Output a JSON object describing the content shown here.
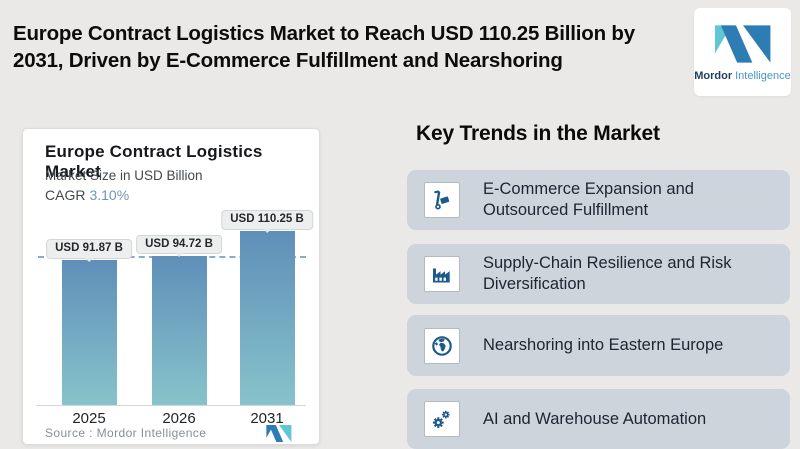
{
  "header": {
    "title_line1": "Europe Contract Logistics Market to Reach USD 110.25 Billion by",
    "title_line2": "2031, Driven by E-Commerce Fulfillment and Nearshoring"
  },
  "logo": {
    "name_bold": "Mordor",
    "name_light": "Intelligence"
  },
  "chart_card": {
    "title": "Europe Contract Logistics Market",
    "subtitle": "Market Size in USD Billion",
    "cagr_label": "CAGR",
    "cagr_value": "3.10%",
    "source_label": "Source :  Mordor Intelligence"
  },
  "chart_data": {
    "type": "bar",
    "title": "Europe Contract Logistics Market",
    "subtitle": "Market Size in USD Billion",
    "cagr": "3.10%",
    "categories": [
      "2025",
      "2026",
      "2031"
    ],
    "values": [
      91.87,
      94.72,
      110.25
    ],
    "value_labels": [
      "USD 91.87 B",
      "USD 94.72 B",
      "USD 110.25 B"
    ],
    "unit": "USD Billion",
    "ylim": [
      0,
      120
    ],
    "reference_line": 91.87,
    "grid": false,
    "legend": "none",
    "bar_gradient_top": "#5f8fb8",
    "bar_gradient_bottom": "#87c3cb",
    "source": "Source :  Mordor Intelligence"
  },
  "trends": {
    "heading": "Key Trends in the Market",
    "items": [
      {
        "icon": "hand-truck-icon",
        "label": "E-Commerce Expansion and Outsourced Fulfillment"
      },
      {
        "icon": "factory-icon",
        "label": "Supply-Chain Resilience and Risk Diversification"
      },
      {
        "icon": "globe-icon",
        "label": "Nearshoring into Eastern Europe"
      },
      {
        "icon": "gears-icon",
        "label": "AI and Warehouse Automation"
      }
    ]
  },
  "colors": {
    "page_background": "#eae9e7",
    "accent_blue": "#7095ba",
    "icon_blue": "#1d5a8c",
    "trend_card_bg": "#ced4dc",
    "logo_teal": "#5fc6d4",
    "logo_blue": "#2e7cb4",
    "dashed_line": "#84add0"
  }
}
